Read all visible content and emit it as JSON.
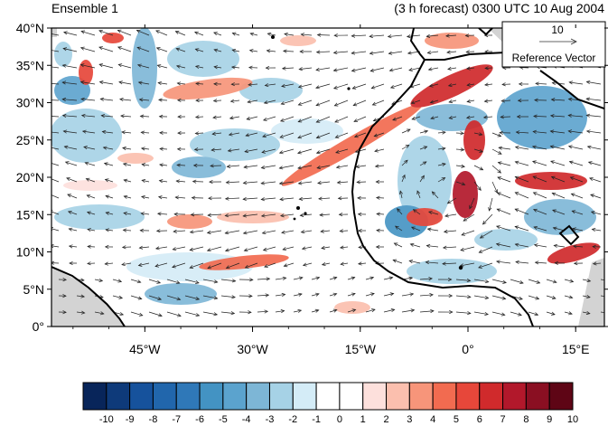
{
  "header": {
    "left_title": "Ensemble 1",
    "right_title": "(3 h forecast) 0300 UTC 10 Aug 2004"
  },
  "map": {
    "lat_labels": [
      "40°N",
      "35°N",
      "30°N",
      "25°N",
      "20°N",
      "15°N",
      "10°N",
      "5°N",
      "0°"
    ],
    "lon_labels": [
      "45°W",
      "30°W",
      "15°W",
      "0°",
      "15°E"
    ],
    "lat_range": [
      0,
      40
    ],
    "lon_range": [
      -58,
      19
    ],
    "reference_vector": {
      "value": "10",
      "label": "Reference Vector"
    }
  },
  "colorbar": {
    "levels": [
      "-10",
      "-9",
      "-8",
      "-7",
      "-6",
      "-5",
      "-4",
      "-3",
      "-2",
      "-1",
      "0",
      "1",
      "2",
      "3",
      "4",
      "5",
      "6",
      "7",
      "8",
      "9",
      "10"
    ],
    "colors": [
      "#08255a",
      "#0e3a7a",
      "#16529c",
      "#2166ac",
      "#2f78b8",
      "#4393c3",
      "#5ba3ce",
      "#7db6d6",
      "#a6d2e6",
      "#d4ecf7",
      "#ffffff",
      "#ffffff",
      "#fde0dc",
      "#fbbfae",
      "#f7957a",
      "#f26b50",
      "#e7473a",
      "#d02a2c",
      "#b2182b",
      "#8a0f22",
      "#5e0515"
    ]
  },
  "colors": {
    "land": "#d3d3d3",
    "coast": "#000000",
    "arrow": "#222222"
  }
}
